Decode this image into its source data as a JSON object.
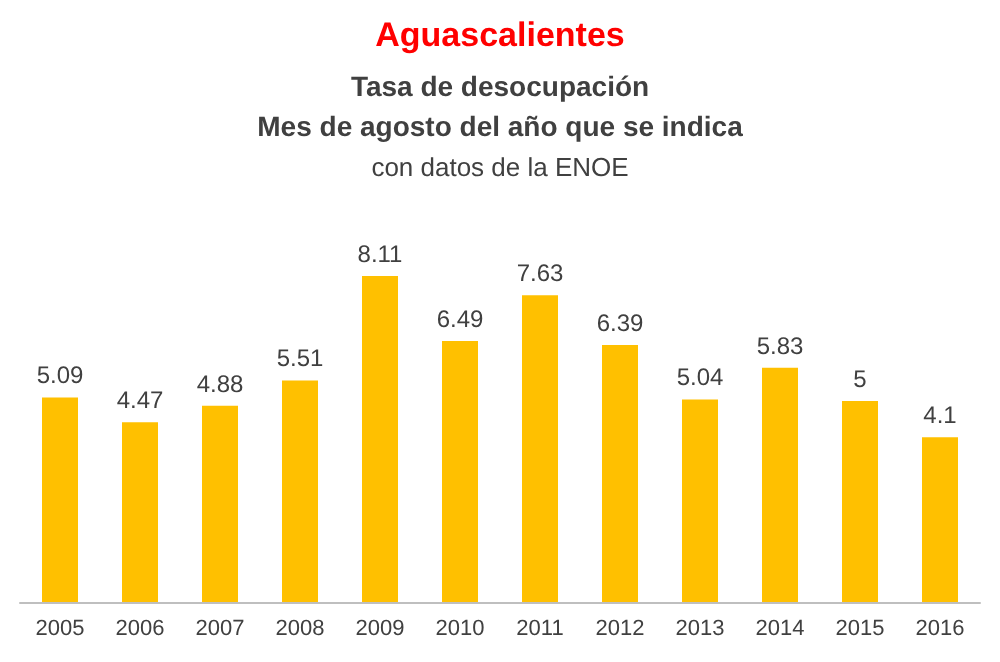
{
  "chart_data": {
    "type": "bar",
    "title": "Aguascalientes",
    "subtitle": "Tasa de desocupación\nMes de agosto del año que se indica",
    "annotations": [
      "con datos de la ENOE"
    ],
    "categories": [
      "2005",
      "2006",
      "2007",
      "2008",
      "2009",
      "2010",
      "2011",
      "2012",
      "2013",
      "2014",
      "2015",
      "2016"
    ],
    "values": [
      5.09,
      4.47,
      4.88,
      5.51,
      8.11,
      6.49,
      7.63,
      6.39,
      5.04,
      5.83,
      5,
      4.1
    ],
    "color": "#ffc000",
    "data_labels": true
  }
}
